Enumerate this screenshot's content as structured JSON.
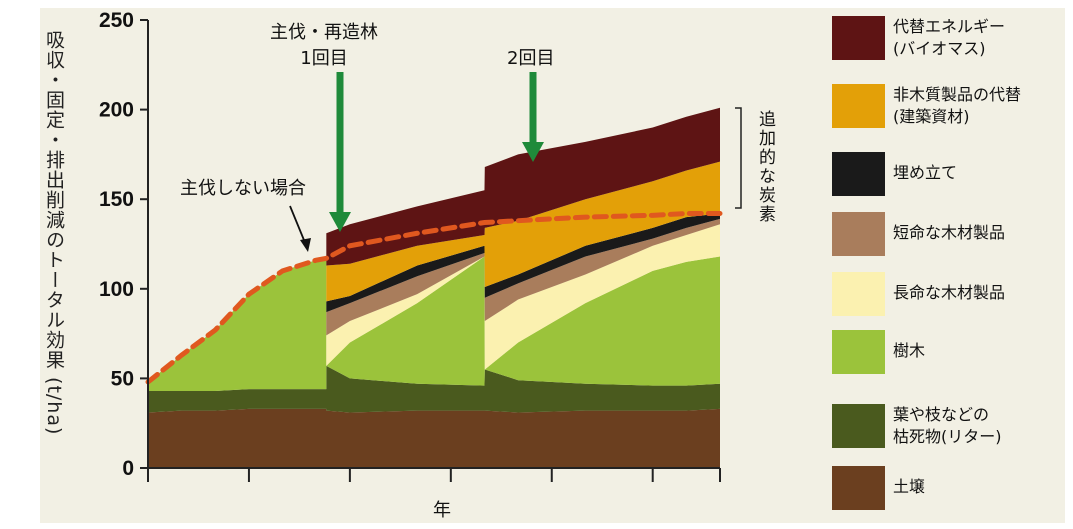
{
  "chart_data": {
    "type": "area",
    "xlabel": "年",
    "ylabel": "吸収・固定・排出削減のトータル効果 (t/ha)",
    "ylim": [
      0,
      250
    ],
    "yticks": [
      0,
      50,
      100,
      150,
      200,
      250
    ],
    "grid": false,
    "legend_position": "right",
    "series": [
      {
        "name": "土壌",
        "color": "#6b3f1f",
        "values": [
          31,
          32,
          32,
          33,
          33,
          33,
          33,
          32,
          31,
          32,
          32,
          32,
          31,
          32,
          32,
          32,
          33
        ]
      },
      {
        "name": "葉や枝などの枯死物(リター)",
        "color": "#4a5a1e",
        "values": [
          43,
          43,
          43,
          44,
          44,
          44,
          44,
          57,
          50,
          47,
          46,
          55,
          49,
          47,
          46,
          46,
          47
        ]
      },
      {
        "name": "樹木",
        "color": "#9bc33b",
        "values": [
          48,
          63,
          77,
          97,
          110,
          116,
          117,
          57,
          70,
          92,
          118,
          55,
          70,
          92,
          110,
          115,
          118
        ]
      },
      {
        "name": "長命な木材製品",
        "color": "#fbf1b0",
        "values": [
          48,
          63,
          77,
          97,
          110,
          116,
          117,
          74,
          82,
          97,
          118,
          82,
          94,
          108,
          124,
          130,
          136
        ]
      },
      {
        "name": "短命な木材製品",
        "color": "#a97d5c",
        "values": [
          48,
          63,
          77,
          97,
          110,
          116,
          117,
          87,
          92,
          107,
          120,
          95,
          103,
          118,
          128,
          134,
          139
        ]
      },
      {
        "name": "埋め立て",
        "color": "#1a1a1a",
        "values": [
          48,
          63,
          77,
          97,
          110,
          116,
          117,
          93,
          96,
          113,
          124,
          101,
          108,
          124,
          134,
          140,
          142
        ]
      },
      {
        "name": "非木質製品の代替(建築資材)",
        "color": "#e3a008",
        "values": [
          48,
          63,
          77,
          97,
          110,
          116,
          117,
          113,
          114,
          124,
          130,
          134,
          138,
          150,
          160,
          166,
          171
        ]
      },
      {
        "name": "代替エネルギー(バイオマス)",
        "color": "#5e1414",
        "values": [
          48,
          63,
          77,
          97,
          110,
          116,
          117,
          131,
          136,
          146,
          155,
          168,
          175,
          182,
          190,
          196,
          201
        ]
      }
    ],
    "x": [
      0,
      1,
      2,
      3,
      4,
      5,
      5.3,
      5.3,
      6,
      8,
      10,
      10.01,
      11,
      13,
      15,
      16,
      17
    ],
    "baseline_no_harvest": {
      "label": "主伐しない場合",
      "color": "#e0581f",
      "x": [
        0,
        1,
        2,
        3,
        4,
        5,
        5.3,
        6,
        8,
        10,
        11,
        13,
        15,
        16,
        17
      ],
      "values": [
        48,
        63,
        77,
        97,
        110,
        116,
        117,
        124,
        131,
        137,
        138,
        140,
        141,
        142,
        142
      ]
    },
    "annotations": {
      "harvest1": "主伐・再造林\n1回目",
      "harvest2": "2回目",
      "extra_carbon": "追加的な炭素"
    }
  },
  "legend_colors": {
    "arrow": "#1f8a3a"
  }
}
